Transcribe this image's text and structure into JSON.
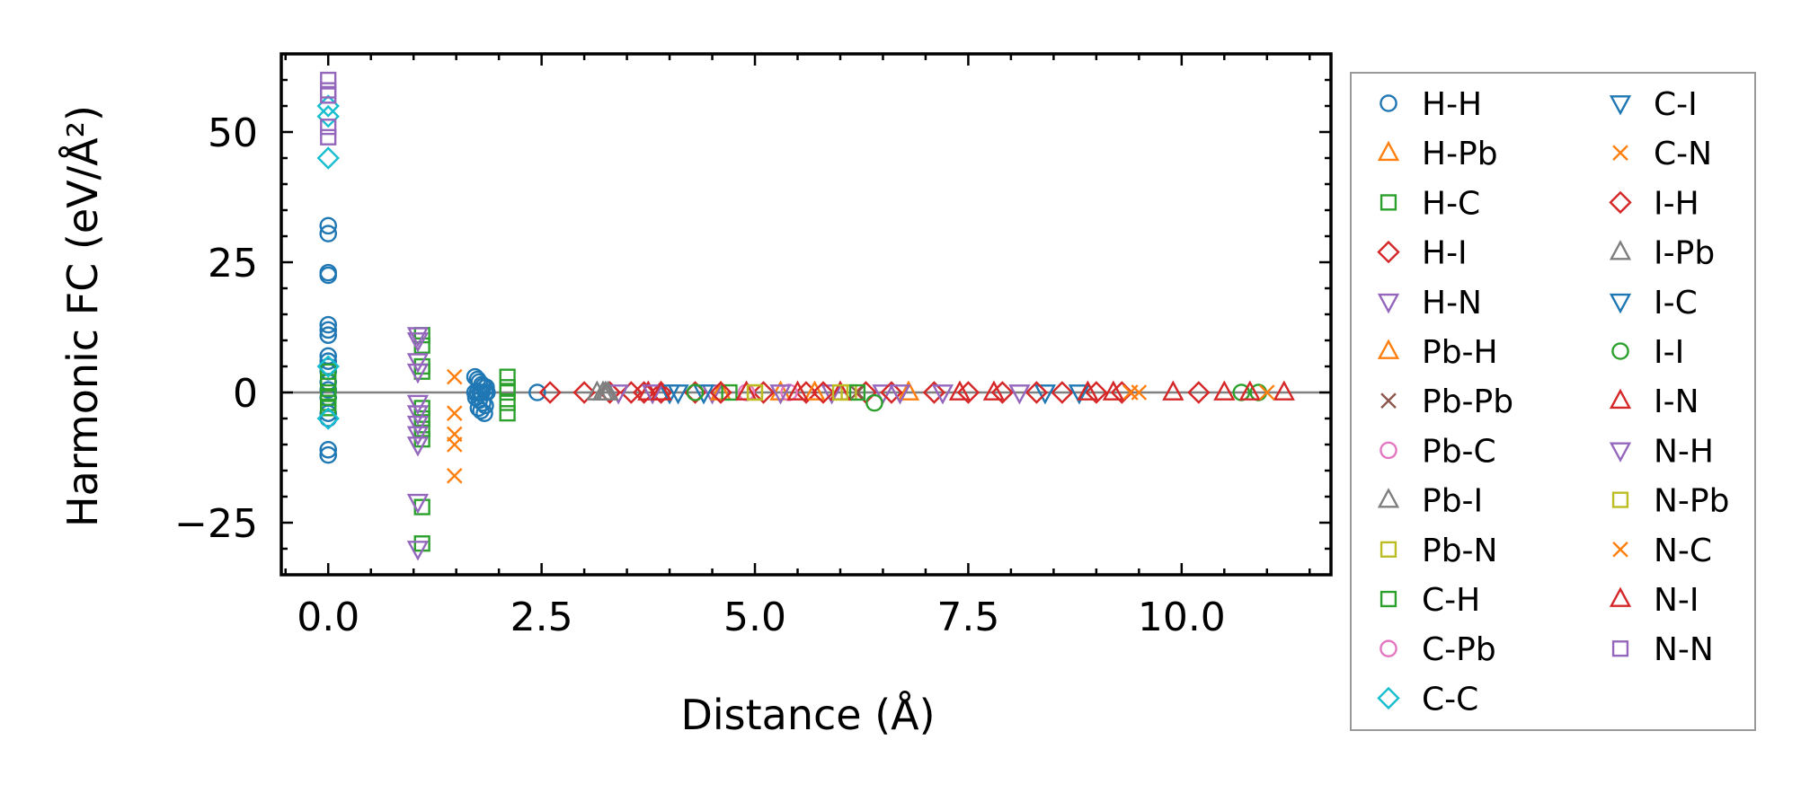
{
  "chart_data": {
    "type": "scatter",
    "title": "",
    "xlabel": "Distance (Å)",
    "ylabel": "Harmonic FC (eV/Å²)",
    "xlim": [
      -0.55,
      11.75
    ],
    "ylim": [
      -35,
      65
    ],
    "xticks": [
      0.0,
      2.5,
      5.0,
      7.5,
      10.0
    ],
    "xtick_labels": [
      "0.0",
      "2.5",
      "5.0",
      "7.5",
      "10.0"
    ],
    "yticks": [
      -25,
      0,
      25,
      50
    ],
    "ytick_labels": [
      "−25",
      "0",
      "25",
      "50"
    ],
    "zero_line": 0,
    "legend_position": "outside-right",
    "series": [
      {
        "name": "H-H",
        "marker": "circle",
        "color": "#1f77b4",
        "x": [
          0,
          0,
          0,
          0,
          0,
          0,
          0,
          0,
          0,
          0,
          0,
          0,
          0,
          0,
          0,
          0,
          0,
          0,
          1.72,
          1.75,
          1.77,
          1.8,
          1.82,
          1.85,
          1.72,
          1.75,
          1.78,
          1.8,
          1.84,
          1.86,
          1.73,
          1.77,
          1.81,
          1.84,
          1.76,
          1.79,
          1.83,
          2.45
        ],
        "y": [
          32,
          30.5,
          23,
          22.5,
          13,
          12,
          11,
          7,
          6,
          5,
          4,
          2,
          0.5,
          -1,
          -4,
          -5,
          -11,
          -12,
          3,
          2.5,
          2,
          1.5,
          1.2,
          1,
          0,
          0,
          0,
          0,
          0,
          0,
          -1,
          -1.5,
          -2,
          -2.5,
          -3,
          -3.5,
          -4,
          0
        ]
      },
      {
        "name": "H-Pb",
        "marker": "triangle-up",
        "color": "#ff7f0e",
        "x": [
          5.3,
          6.8
        ],
        "y": [
          0,
          0
        ]
      },
      {
        "name": "H-C",
        "marker": "square",
        "color": "#2ca02c",
        "x": [
          0,
          0,
          0,
          0,
          0,
          0,
          1.1,
          1.1,
          1.1,
          1.1,
          1.1,
          1.1,
          1.1,
          1.1,
          1.1,
          1.1,
          2.1,
          2.1,
          2.1,
          2.1,
          2.1
        ],
        "y": [
          4,
          2,
          0,
          -1,
          -2,
          -3,
          11,
          9,
          5,
          4,
          -3,
          -5,
          -7,
          -9,
          -22,
          -29,
          3,
          1,
          0,
          -2,
          -4
        ]
      },
      {
        "name": "H-I",
        "marker": "diamond",
        "color": "#d62728",
        "x": [
          2.6,
          3.0,
          3.3,
          3.55,
          3.9,
          4.3,
          5.1,
          5.6,
          6.3,
          7.1,
          7.9,
          8.6,
          9.3,
          10.2
        ],
        "y": [
          0,
          0,
          0,
          0,
          0,
          0,
          0,
          0,
          0,
          0,
          0,
          0,
          0,
          0
        ]
      },
      {
        "name": "H-N",
        "marker": "triangle-down",
        "color": "#9467bd",
        "x": [
          1.05,
          1.05,
          1.05,
          1.05,
          1.05,
          1.05,
          1.05,
          1.05,
          1.05,
          1.05,
          1.05,
          3.4,
          4.5,
          5.9,
          6.5,
          7.2
        ],
        "y": [
          11,
          10,
          6,
          4,
          -2,
          -4,
          -6,
          -8,
          -10,
          -21,
          -30,
          0,
          0,
          0,
          0,
          0
        ]
      },
      {
        "name": "Pb-H",
        "marker": "triangle-up",
        "color": "#ff7f0e",
        "x": [
          4.6,
          5.7
        ],
        "y": [
          0,
          0
        ]
      },
      {
        "name": "Pb-Pb",
        "marker": "x",
        "color": "#8c564b",
        "x": [
          6.2
        ],
        "y": [
          0
        ]
      },
      {
        "name": "Pb-C",
        "marker": "circle",
        "color": "#e377c2",
        "x": [
          4.9
        ],
        "y": [
          0
        ]
      },
      {
        "name": "Pb-I",
        "marker": "triangle-up",
        "color": "#7f7f7f",
        "x": [
          3.15,
          3.22,
          3.28
        ],
        "y": [
          0,
          0,
          0
        ]
      },
      {
        "name": "Pb-N",
        "marker": "square",
        "color": "#bcbd22",
        "x": [
          5.0,
          6.1
        ],
        "y": [
          0,
          0
        ]
      },
      {
        "name": "C-H",
        "marker": "square",
        "color": "#2ca02c",
        "x": [
          4.7,
          6.2
        ],
        "y": [
          0,
          0
        ]
      },
      {
        "name": "C-Pb",
        "marker": "circle",
        "color": "#e377c2",
        "x": [
          5.4
        ],
        "y": [
          0
        ]
      },
      {
        "name": "C-C",
        "marker": "diamond",
        "color": "#17becf",
        "x": [
          0,
          0,
          0,
          0,
          0
        ],
        "y": [
          55,
          53,
          45,
          5,
          -5
        ]
      },
      {
        "name": "C-I",
        "marker": "triangle-down",
        "color": "#1f77b4",
        "x": [
          4.1,
          8.4
        ],
        "y": [
          0,
          0
        ]
      },
      {
        "name": "C-N",
        "marker": "x",
        "color": "#ff7f0e",
        "x": [
          1.48,
          1.48,
          1.48,
          1.48,
          1.48,
          9.5
        ],
        "y": [
          3,
          -4,
          -8,
          -10,
          -16,
          0
        ]
      },
      {
        "name": "I-H",
        "marker": "diamond",
        "color": "#d62728",
        "x": [
          3.7,
          4.6,
          5.8,
          6.6,
          7.5,
          8.3,
          9.0
        ],
        "y": [
          0,
          0,
          0,
          0,
          0,
          0,
          0
        ]
      },
      {
        "name": "I-Pb",
        "marker": "triangle-up",
        "color": "#7f7f7f",
        "x": [
          3.25
        ],
        "y": [
          0
        ]
      },
      {
        "name": "I-C",
        "marker": "triangle-down",
        "color": "#1f77b4",
        "x": [
          4.0,
          4.4,
          8.8
        ],
        "y": [
          0,
          0,
          0
        ]
      },
      {
        "name": "I-I",
        "marker": "circle",
        "color": "#2ca02c",
        "x": [
          4.3,
          6.4,
          10.7,
          10.9
        ],
        "y": [
          0,
          -2,
          0,
          0
        ]
      },
      {
        "name": "I-N",
        "marker": "triangle-up",
        "color": "#d62728",
        "x": [
          3.75,
          4.9,
          6.0,
          7.4,
          8.9,
          9.9,
          10.8,
          11.2
        ],
        "y": [
          0,
          0,
          0,
          0,
          0,
          0,
          0,
          0
        ]
      },
      {
        "name": "N-H",
        "marker": "triangle-down",
        "color": "#9467bd",
        "x": [
          3.8,
          5.3,
          6.7,
          8.1
        ],
        "y": [
          0,
          0,
          0,
          0
        ]
      },
      {
        "name": "N-Pb",
        "marker": "square",
        "color": "#bcbd22",
        "x": [
          5.0,
          6.0
        ],
        "y": [
          0,
          0
        ]
      },
      {
        "name": "N-C",
        "marker": "x",
        "color": "#ff7f0e",
        "x": [
          9.4,
          11.0
        ],
        "y": [
          0,
          0
        ]
      },
      {
        "name": "N-I",
        "marker": "triangle-up",
        "color": "#d62728",
        "x": [
          3.9,
          5.5,
          7.8,
          9.2,
          10.5
        ],
        "y": [
          0,
          0,
          0,
          0,
          0
        ]
      },
      {
        "name": "N-N",
        "marker": "square",
        "color": "#9467bd",
        "x": [
          0,
          0,
          0,
          0,
          0
        ],
        "y": [
          60,
          58,
          57,
          51,
          49
        ]
      }
    ]
  }
}
